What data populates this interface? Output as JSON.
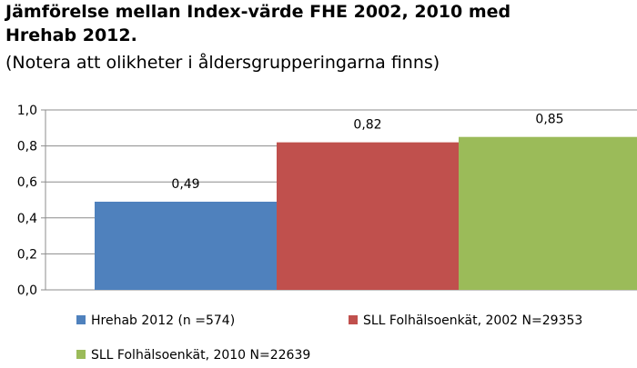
{
  "header": {
    "title_line1": "Jämförelse mellan Index-värde FHE 2002, 2010 med",
    "title_line2": "Hrehab 2012.",
    "subtitle": "(Notera att olikheter i åldersgrupperingarna finns)"
  },
  "chart_data": {
    "type": "bar",
    "title": "Jämförelse mellan Index-värde FHE 2002, 2010 med Hrehab 2012.",
    "subtitle": "(Notera att olikheter i åldersgrupperingarna finns)",
    "xlabel": "",
    "ylabel": "",
    "ylim": [
      0,
      1.0
    ],
    "yticks": [
      "0,0",
      "0,2",
      "0,4",
      "0,6",
      "0,8",
      "1,0"
    ],
    "ytick_values": [
      0,
      0.2,
      0.4,
      0.6,
      0.8,
      1.0
    ],
    "grid": true,
    "legend_position": "bottom",
    "series": [
      {
        "name": "Hrehab 2012 (n =574)",
        "value": 0.49,
        "label": "0,49",
        "color": "#4f81bd"
      },
      {
        "name": "SLL  Folhälsoenkät, 2002 N=29353",
        "value": 0.82,
        "label": "0,82",
        "color": "#c0504d"
      },
      {
        "name": "SLL  Folhälsoenkät, 2010 N=22639",
        "value": 0.85,
        "label": "0,85",
        "color": "#9bbb59"
      }
    ]
  }
}
